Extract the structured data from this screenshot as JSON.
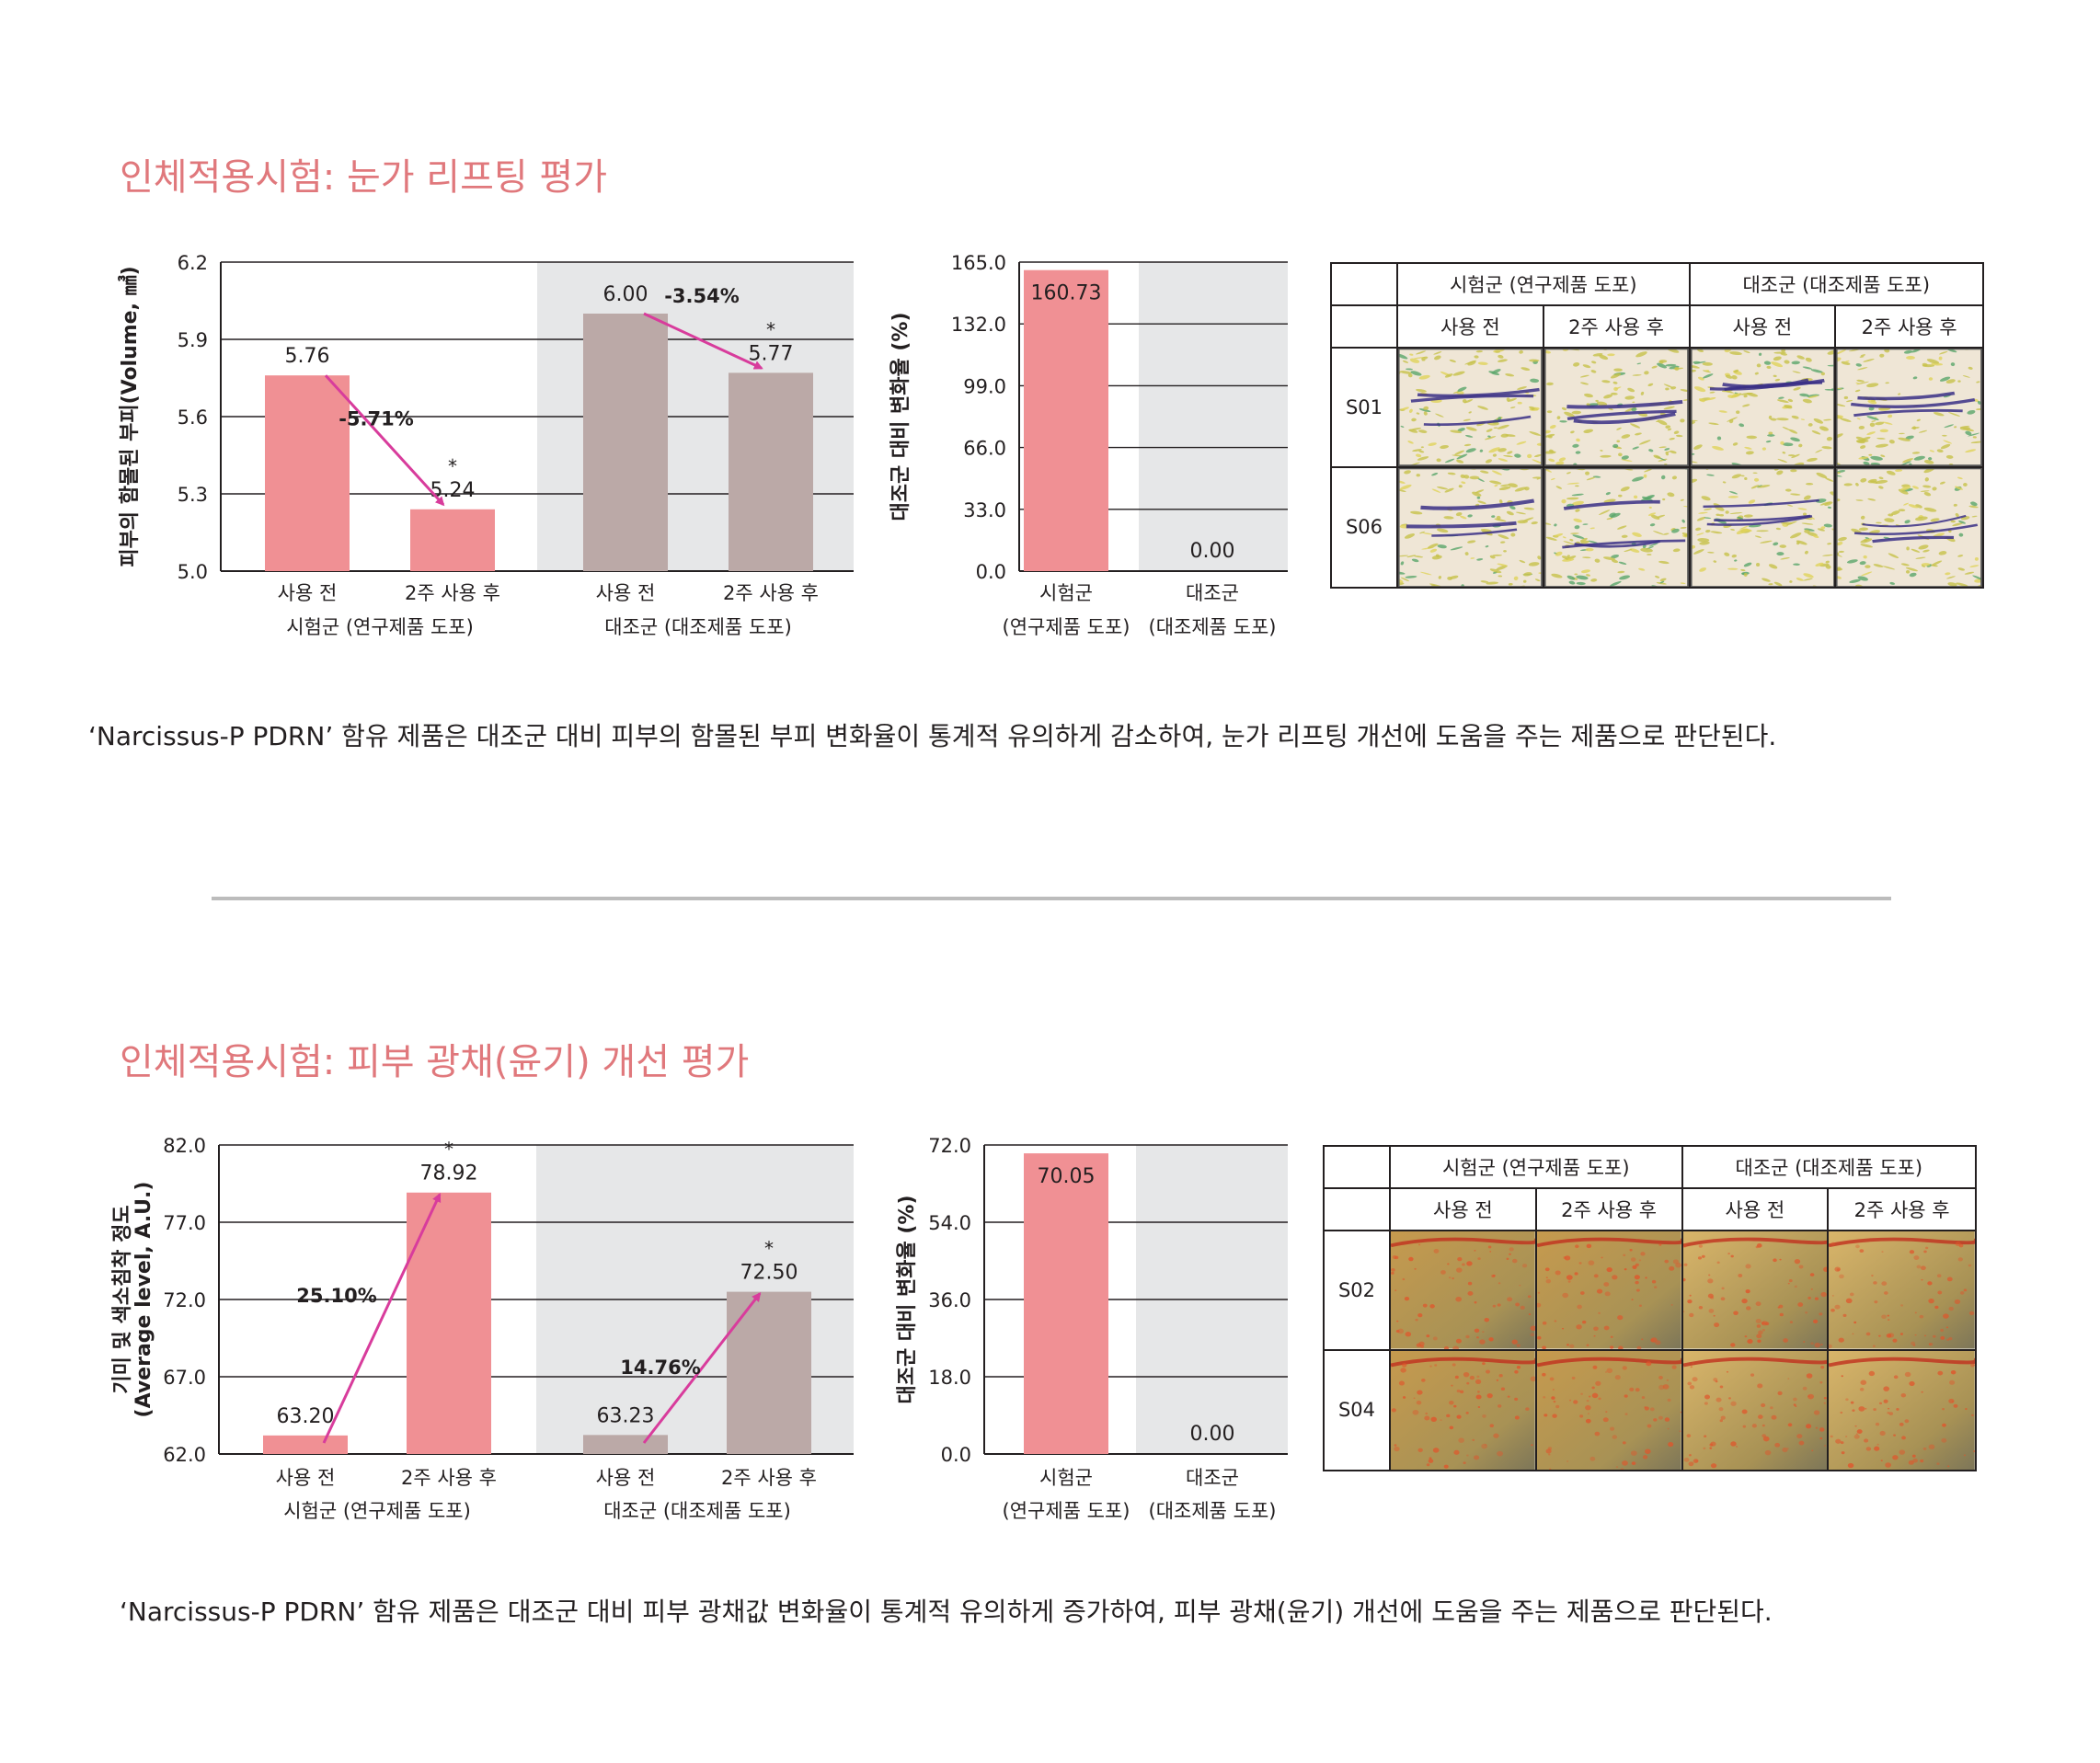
{
  "sections": [
    {
      "title": "인체적용시험: 눈가 리프팅 평가",
      "caption": "‘Narcissus-P PDRN’ 함유 제품은 대조군 대비 피부의 함몰된 부피 변화율이 통계적 유의하게 감소하여, 눈가 리프팅 개선에 도움을 주는 제품으로 판단된다.",
      "table": {
        "group_headers": [
          "시험군 (연구제품 도포)",
          "대조군 (대조제품 도포)"
        ],
        "sub_headers": [
          "사용 전",
          "2주 사용 후",
          "사용 전",
          "2주 사용 후"
        ],
        "rows": [
          "S01",
          "S06"
        ],
        "image_type": "wrinkle-map"
      }
    },
    {
      "title": "인체적용시험: 피부 광채(윤기) 개선 평가",
      "caption": "‘Narcissus-P PDRN’ 함유 제품은 대조군 대비 피부 광채값 변화율이 통계적 유의하게 증가하여, 피부 광채(윤기) 개선에 도움을 주는 제품으로 판단된다.",
      "table": {
        "group_headers": [
          "시험군 (연구제품 도포)",
          "대조군 (대조제품 도포)"
        ],
        "sub_headers": [
          "사용 전",
          "2주 사용 후",
          "사용 전",
          "2주 사용 후"
        ],
        "rows": [
          "S02",
          "S04"
        ],
        "image_type": "pigment-map"
      }
    }
  ],
  "colors": {
    "test": "#f09094",
    "control": "#bba9a7",
    "shade": "#e6e7e8",
    "arrow": "#d83c9c",
    "title": "#e0787c"
  },
  "chart_data": [
    {
      "type": "bar",
      "ylabel": "피부의 함몰된 부피(Volume, ㎣)",
      "ylim": [
        5.0,
        6.2
      ],
      "yticks": [
        "5.0",
        "5.3",
        "5.6",
        "5.9",
        "6.2"
      ],
      "categories": [
        "사용 전",
        "2주 사용 후",
        "사용 전",
        "2주 사용 후"
      ],
      "groups": [
        "시험군 (연구제품 도포)",
        "대조군 (대조제품 도포)"
      ],
      "values": [
        5.76,
        5.24,
        6.0,
        5.77
      ],
      "value_labels": [
        "5.76",
        "5.24",
        "6.00",
        "5.77"
      ],
      "significant": [
        false,
        true,
        false,
        true
      ],
      "changes": [
        {
          "from": 0,
          "to": 1,
          "label": "-5.71%"
        },
        {
          "from": 2,
          "to": 3,
          "label": "-3.54%"
        }
      ],
      "shaded_group": 1
    },
    {
      "type": "bar",
      "ylabel": "대조군 대비 변화율 (%)",
      "ylim": [
        0.0,
        165.0
      ],
      "yticks": [
        "0.0",
        "33.0",
        "66.0",
        "99.0",
        "132.0",
        "165.0"
      ],
      "categories": [
        [
          "시험군",
          "(연구제품 도포)"
        ],
        [
          "대조군",
          "(대조제품 도포)"
        ]
      ],
      "values": [
        160.73,
        0.0
      ],
      "value_labels": [
        "160.73",
        "0.00"
      ],
      "shaded_group": 1
    },
    {
      "type": "bar",
      "ylabel": [
        "기미 및 색소침착 정도",
        "(Average level, A.U.)"
      ],
      "ylim": [
        62.0,
        82.0
      ],
      "yticks": [
        "62.0",
        "67.0",
        "72.0",
        "77.0",
        "82.0"
      ],
      "categories": [
        "사용 전",
        "2주 사용 후",
        "사용 전",
        "2주 사용 후"
      ],
      "groups": [
        "시험군 (연구제품 도포)",
        "대조군 (대조제품 도포)"
      ],
      "values": [
        63.2,
        78.92,
        63.23,
        72.5
      ],
      "value_labels": [
        "63.20",
        "78.92",
        "63.23",
        "72.50"
      ],
      "significant": [
        false,
        true,
        false,
        true
      ],
      "changes": [
        {
          "from": 0,
          "to": 1,
          "label": "25.10%"
        },
        {
          "from": 2,
          "to": 3,
          "label": "14.76%"
        }
      ],
      "shaded_group": 1
    },
    {
      "type": "bar",
      "ylabel": "대조군 대비 변화율 (%)",
      "ylim": [
        0.0,
        72.0
      ],
      "yticks": [
        "0.0",
        "18.0",
        "36.0",
        "54.0",
        "72.0"
      ],
      "categories": [
        [
          "시험군",
          "(연구제품 도포)"
        ],
        [
          "대조군",
          "(대조제품 도포)"
        ]
      ],
      "values": [
        70.05,
        0.0
      ],
      "value_labels": [
        "70.05",
        "0.00"
      ],
      "shaded_group": 1
    }
  ]
}
